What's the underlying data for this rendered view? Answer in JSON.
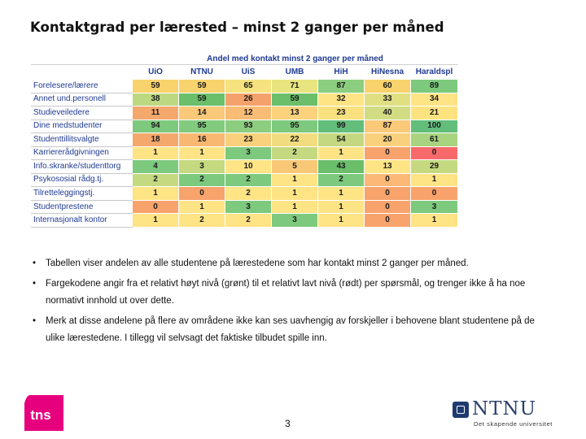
{
  "title": "Kontaktgrad per lærested – minst 2 ganger per måned",
  "table": {
    "caption": "Andel med kontakt minst 2 ganger per måned",
    "columns": [
      "UiO",
      "NTNU",
      "UiS",
      "UMB",
      "HiH",
      "HiNesna",
      "Haraldspl"
    ],
    "rows": [
      {
        "label": "Forelesere/lærere",
        "values": [
          "59",
          "59",
          "65",
          "71",
          "87",
          "60",
          "89"
        ]
      },
      {
        "label": "Annet und.personell",
        "values": [
          "38",
          "59",
          "26",
          "59",
          "32",
          "33",
          "34"
        ]
      },
      {
        "label": "Studieveiledere",
        "values": [
          "11",
          "14",
          "12",
          "13",
          "23",
          "40",
          "21"
        ]
      },
      {
        "label": "Dine medstudenter",
        "values": [
          "94",
          "95",
          "93",
          "95",
          "99",
          "87",
          "100"
        ]
      },
      {
        "label": "Studenttillitsvalgte",
        "values": [
          "18",
          "16",
          "23",
          "22",
          "54",
          "20",
          "61"
        ]
      },
      {
        "label": "Karriererådgivningen",
        "values": [
          "1",
          "1",
          "3",
          "2",
          "1",
          "0",
          "0"
        ]
      },
      {
        "label": "Info.skranke/studenttorg",
        "values": [
          "4",
          "3",
          "10",
          "5",
          "43",
          "13",
          "29"
        ]
      },
      {
        "label": "Psykososial rådg.tj.",
        "values": [
          "2",
          "2",
          "2",
          "1",
          "2",
          "0",
          "1"
        ]
      },
      {
        "label": "Tilretteleggingstj.",
        "values": [
          "1",
          "0",
          "2",
          "1",
          "1",
          "0",
          "0"
        ]
      },
      {
        "label": "Studentprestene",
        "values": [
          "0",
          "1",
          "3",
          "1",
          "1",
          "0",
          "3"
        ]
      },
      {
        "label": "Internasjonalt kontor",
        "values": [
          "1",
          "2",
          "2",
          "3",
          "1",
          "0",
          "1"
        ]
      }
    ],
    "colors": [
      [
        "#f8d26d",
        "#f8d26d",
        "#f6e27f",
        "#e8e480",
        "#8cce7f",
        "#f8d26d",
        "#7dc97d"
      ],
      [
        "#bcd982",
        "#6bbf6b",
        "#f4a16b",
        "#6bbf6b",
        "#ffe486",
        "#e0e083",
        "#ffe486"
      ],
      [
        "#f4a86c",
        "#f9c879",
        "#f8bc74",
        "#fcd27d",
        "#f9e17f",
        "#d2dc82",
        "#fde380"
      ],
      [
        "#7ec97d",
        "#82cb7e",
        "#8ccd7f",
        "#7ec97d",
        "#63be7b",
        "#fbc97a",
        "#63be7b"
      ],
      [
        "#f4a86c",
        "#f9b872",
        "#f9d07b",
        "#f1dd80",
        "#c4d881",
        "#f9d07b",
        "#a8d37f"
      ],
      [
        "#ffe486",
        "#ffe486",
        "#7dc97d",
        "#c5d980",
        "#ffe486",
        "#f8a36c",
        "#f8696b"
      ],
      [
        "#7dc97d",
        "#c5d980",
        "#ffe486",
        "#f8c877",
        "#6bbf6b",
        "#ffe486",
        "#c5d980"
      ],
      [
        "#c5d980",
        "#7dc97d",
        "#7dc97d",
        "#ffe486",
        "#7dc97d",
        "#fbb877",
        "#ffe486"
      ],
      [
        "#ffe486",
        "#f8a36c",
        "#ffe486",
        "#ffe486",
        "#ffe486",
        "#f8a36c",
        "#f8a36c"
      ],
      [
        "#f8a36c",
        "#ffe486",
        "#7dc97d",
        "#ffe486",
        "#ffe486",
        "#f8a36c",
        "#7dc97d"
      ],
      [
        "#ffe486",
        "#ffe486",
        "#ffe486",
        "#7dc97d",
        "#ffe486",
        "#f8a36c",
        "#ffe486"
      ]
    ]
  },
  "bullets": [
    "Tabellen viser andelen av alle studentene på lærestedene som har kontakt minst 2 ganger per måned.",
    "Fargekodene angir fra et relativt høyt nivå (grønt) til et relativt lavt nivå (rødt)  per spørsmål, og trenger ikke å ha noe normativt innhold ut over dette.",
    "Merk at disse andelene på flere av områdene ikke kan ses uavhengig av forskjeller i behovene blant studentene på de ulike lærestedene. I tillegg vil selvsagt det faktiske tilbudet spille inn."
  ],
  "bullet_glyph": "•",
  "logo_tns": {
    "text": "tns",
    "color": "#e6007e"
  },
  "page_number": "3",
  "ntnu": {
    "word": "NTNU",
    "tagline": "Det skapende universitet"
  }
}
